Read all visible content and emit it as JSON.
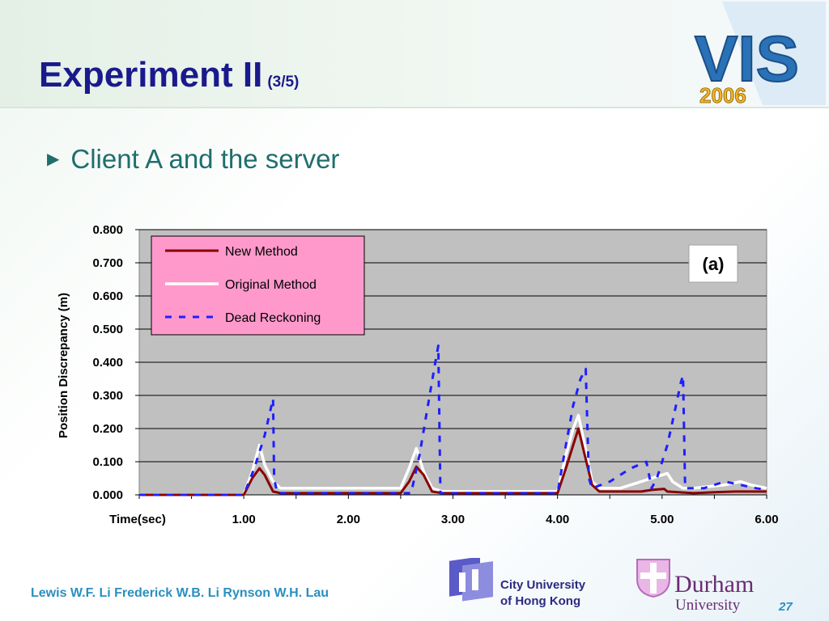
{
  "slide": {
    "title": "Experiment II",
    "title_suffix": "(3/5)",
    "bullet": "Client A and the server",
    "authors": "Lewis W.F. Li  Frederick W.B. Li  Rynson W.H. Lau",
    "page_number": "27",
    "conference_logo": {
      "top_text": "VIS",
      "year": "2006"
    },
    "cityu": {
      "line1": "City University",
      "line2": "of Hong Kong"
    },
    "durham": {
      "line1": "Durham",
      "line2": "University"
    }
  },
  "colors": {
    "title": "#1a1a8c",
    "bullet": "#1f6e6e",
    "footer": "#2a8fc0",
    "plot_background": "#c0c0c0",
    "legend_background": "#ff99cc",
    "new_method": "#8b0000",
    "original_method": "#ffffff",
    "dead_reckoning": "#1f1fff"
  },
  "chart_data": {
    "type": "line",
    "ylabel": "Position Discrepancy (m)",
    "xlabel": "Time(sec)",
    "panel_label": "(a)",
    "xlim": [
      0.0,
      6.0
    ],
    "ylim": [
      0.0,
      0.8
    ],
    "x_ticks": [
      "1.00",
      "2.00",
      "3.00",
      "4.00",
      "5.00",
      "6.00"
    ],
    "y_ticks": [
      "0.000",
      "0.100",
      "0.200",
      "0.300",
      "0.400",
      "0.500",
      "0.600",
      "0.700",
      "0.800"
    ],
    "grid": "horizontal",
    "legend_position": "top-left",
    "series": [
      {
        "name": "New Method",
        "style": "solid",
        "color": "#8b0000",
        "points": [
          [
            0.0,
            0.0
          ],
          [
            1.0,
            0.0
          ],
          [
            1.08,
            0.05
          ],
          [
            1.15,
            0.08
          ],
          [
            1.2,
            0.06
          ],
          [
            1.28,
            0.01
          ],
          [
            1.35,
            0.005
          ],
          [
            2.5,
            0.005
          ],
          [
            2.58,
            0.04
          ],
          [
            2.65,
            0.085
          ],
          [
            2.72,
            0.06
          ],
          [
            2.8,
            0.01
          ],
          [
            2.9,
            0.005
          ],
          [
            3.0,
            0.005
          ],
          [
            4.0,
            0.005
          ],
          [
            4.08,
            0.08
          ],
          [
            4.15,
            0.15
          ],
          [
            4.2,
            0.2
          ],
          [
            4.26,
            0.12
          ],
          [
            4.33,
            0.03
          ],
          [
            4.4,
            0.01
          ],
          [
            4.8,
            0.01
          ],
          [
            4.9,
            0.015
          ],
          [
            5.02,
            0.018
          ],
          [
            5.05,
            0.01
          ],
          [
            5.3,
            0.005
          ],
          [
            5.5,
            0.008
          ],
          [
            5.7,
            0.01
          ],
          [
            5.9,
            0.01
          ],
          [
            6.0,
            0.01
          ]
        ]
      },
      {
        "name": "Original Method",
        "style": "solid",
        "color": "#ffffff",
        "points": [
          [
            0.0,
            0.0
          ],
          [
            1.0,
            0.0
          ],
          [
            1.08,
            0.07
          ],
          [
            1.15,
            0.15
          ],
          [
            1.2,
            0.09
          ],
          [
            1.28,
            0.04
          ],
          [
            1.35,
            0.02
          ],
          [
            2.5,
            0.02
          ],
          [
            2.58,
            0.08
          ],
          [
            2.65,
            0.14
          ],
          [
            2.72,
            0.07
          ],
          [
            2.8,
            0.02
          ],
          [
            2.9,
            0.01
          ],
          [
            3.0,
            0.01
          ],
          [
            4.0,
            0.01
          ],
          [
            4.08,
            0.12
          ],
          [
            4.15,
            0.2
          ],
          [
            4.2,
            0.24
          ],
          [
            4.26,
            0.15
          ],
          [
            4.33,
            0.04
          ],
          [
            4.4,
            0.02
          ],
          [
            4.6,
            0.02
          ],
          [
            4.8,
            0.04
          ],
          [
            5.0,
            0.06
          ],
          [
            5.05,
            0.065
          ],
          [
            5.1,
            0.04
          ],
          [
            5.2,
            0.02
          ],
          [
            5.3,
            0.02
          ],
          [
            5.6,
            0.03
          ],
          [
            5.75,
            0.04
          ],
          [
            5.85,
            0.03
          ],
          [
            6.0,
            0.02
          ]
        ]
      },
      {
        "name": "Dead Reckoning",
        "style": "dashed",
        "color": "#1f1fff",
        "points": [
          [
            0.0,
            0.0
          ],
          [
            1.0,
            0.0
          ],
          [
            1.1,
            0.08
          ],
          [
            1.2,
            0.18
          ],
          [
            1.25,
            0.25
          ],
          [
            1.28,
            0.29
          ],
          [
            1.29,
            0.05
          ],
          [
            1.32,
            0.005
          ],
          [
            2.6,
            0.005
          ],
          [
            2.68,
            0.12
          ],
          [
            2.75,
            0.25
          ],
          [
            2.82,
            0.38
          ],
          [
            2.86,
            0.45
          ],
          [
            2.88,
            0.005
          ],
          [
            3.0,
            0.005
          ],
          [
            4.0,
            0.005
          ],
          [
            4.08,
            0.15
          ],
          [
            4.15,
            0.27
          ],
          [
            4.22,
            0.35
          ],
          [
            4.27,
            0.38
          ],
          [
            4.3,
            0.05
          ],
          [
            4.33,
            0.02
          ],
          [
            4.5,
            0.04
          ],
          [
            4.7,
            0.08
          ],
          [
            4.85,
            0.1
          ],
          [
            4.9,
            0.02
          ],
          [
            4.95,
            0.05
          ],
          [
            5.05,
            0.15
          ],
          [
            5.12,
            0.25
          ],
          [
            5.18,
            0.34
          ],
          [
            5.2,
            0.36
          ],
          [
            5.22,
            0.02
          ],
          [
            5.4,
            0.02
          ],
          [
            5.6,
            0.04
          ],
          [
            5.75,
            0.03
          ],
          [
            5.9,
            0.02
          ],
          [
            6.0,
            0.015
          ]
        ]
      }
    ]
  }
}
